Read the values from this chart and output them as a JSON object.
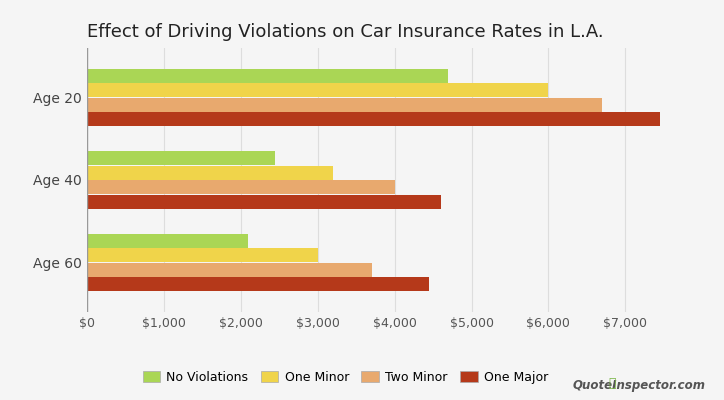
{
  "title": "Effect of Driving Violations on Car Insurance Rates in L.A.",
  "categories": [
    "Age 20",
    "Age 40",
    "Age 60"
  ],
  "series": {
    "No Violations": [
      4700,
      2450,
      2100
    ],
    "One Minor": [
      6000,
      3200,
      3000
    ],
    "Two Minor": [
      6700,
      4000,
      3700
    ],
    "One Major": [
      7450,
      4600,
      4450
    ]
  },
  "colors": {
    "No Violations": "#aad655",
    "One Minor": "#f0d44a",
    "Two Minor": "#e8a96e",
    "One Major": "#b5391a"
  },
  "xlim": [
    0,
    8000
  ],
  "xticks": [
    0,
    1000,
    2000,
    3000,
    4000,
    5000,
    6000,
    7000
  ],
  "background_color": "#f5f5f5",
  "plot_bg_color": "#f5f5f5",
  "grid_color": "#dddddd",
  "title_fontsize": 13,
  "label_fontsize": 10,
  "tick_fontsize": 9,
  "bar_height": 0.17,
  "bar_gap": 0.005,
  "legend_labels": [
    "No Violations",
    "One Minor",
    "Two Minor",
    "One Major"
  ],
  "watermark": "QuoteInspector.com"
}
